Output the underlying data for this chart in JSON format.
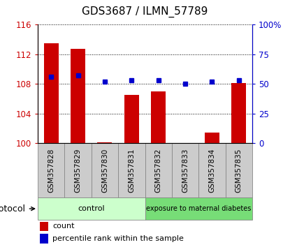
{
  "title": "GDS3687 / ILMN_57789",
  "categories": [
    "GSM357828",
    "GSM357829",
    "GSM357830",
    "GSM357831",
    "GSM357832",
    "GSM357833",
    "GSM357834",
    "GSM357835"
  ],
  "bar_values": [
    113.5,
    112.7,
    100.1,
    106.5,
    107.0,
    100.05,
    101.4,
    108.1
  ],
  "dot_values": [
    56,
    57,
    52,
    53,
    53,
    50,
    52,
    53
  ],
  "ylim": [
    100,
    116
  ],
  "y2lim": [
    0,
    100
  ],
  "yticks": [
    100,
    104,
    108,
    112,
    116
  ],
  "y2ticks": [
    0,
    25,
    50,
    75,
    100
  ],
  "ytick_labels": [
    "100",
    "104",
    "108",
    "112",
    "116"
  ],
  "y2tick_labels": [
    "0",
    "25",
    "50",
    "75",
    "100%"
  ],
  "bar_color": "#cc0000",
  "dot_color": "#0000cc",
  "bg_color": "#ffffff",
  "label_bg_color": "#cccccc",
  "control_color": "#ccffcc",
  "diabetes_color": "#77dd77",
  "control_label": "control",
  "diabetes_label": "exposure to maternal diabetes",
  "protocol_label": "protocol",
  "legend_bar": "count",
  "legend_dot": "percentile rank within the sample",
  "control_indices": [
    0,
    1,
    2,
    3
  ],
  "diabetes_indices": [
    4,
    5,
    6,
    7
  ],
  "bar_color_legend": "#cc0000",
  "dot_color_legend": "#0000cc",
  "title_fontsize": 11,
  "tick_fontsize": 8.5,
  "label_fontsize": 7.5,
  "bar_width": 0.55
}
